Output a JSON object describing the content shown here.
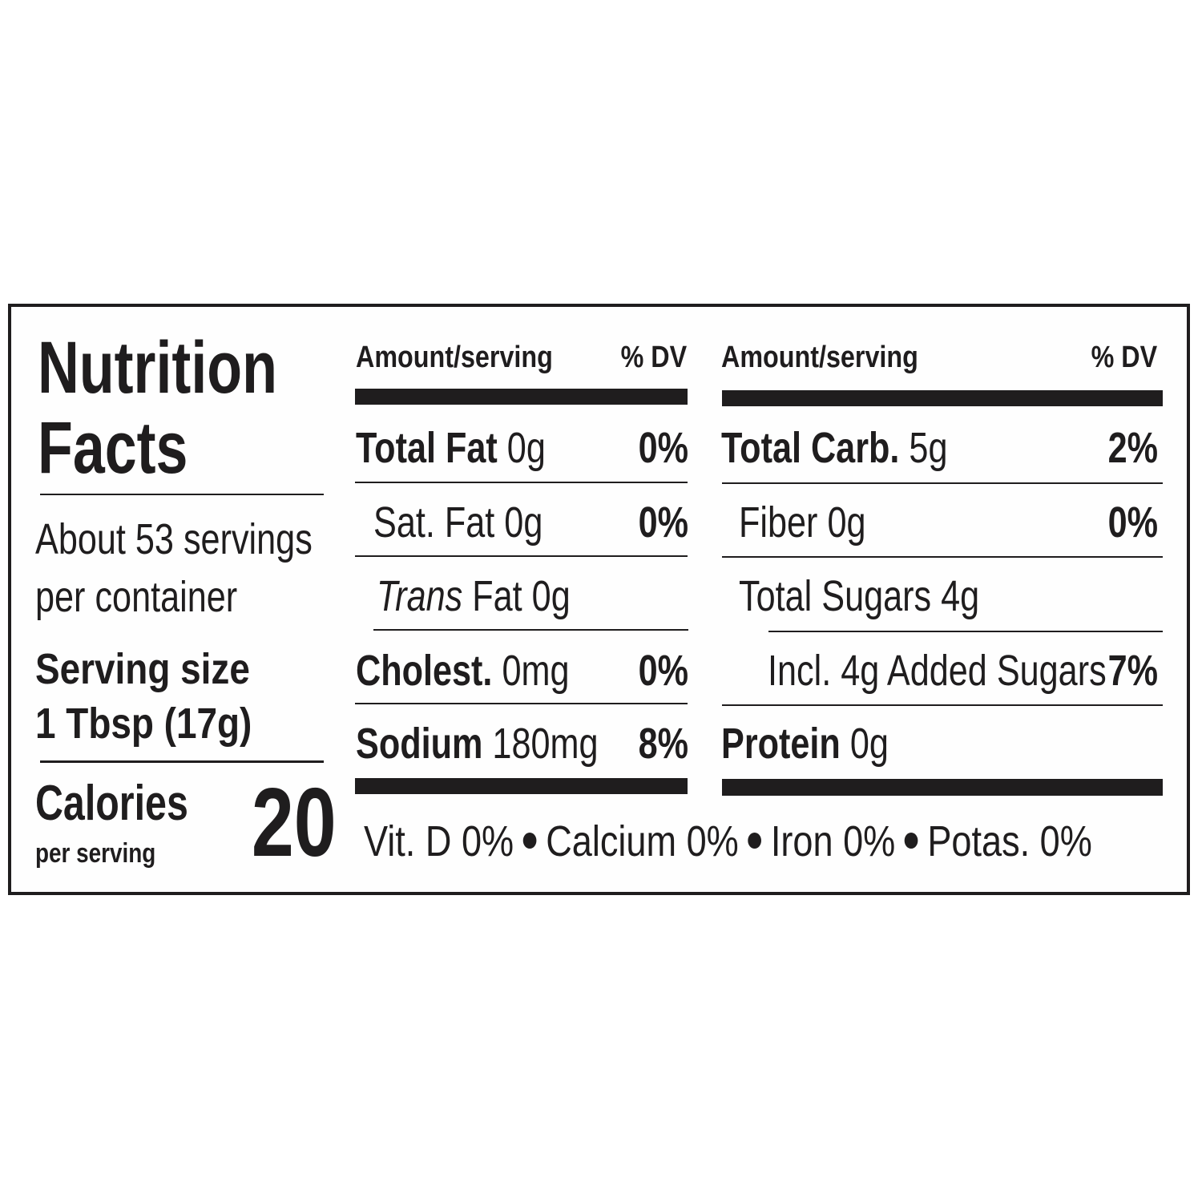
{
  "label": {
    "title_line1": "Nutrition",
    "title_line2": "Facts",
    "servings_line1": "About 53 servings",
    "servings_line2": "per container",
    "serving_size_line1": "Serving size",
    "serving_size_line2": "1 Tbsp (17g)",
    "calories_label": "Calories",
    "calories_sub": "per serving",
    "calories_value": "20"
  },
  "left_column": {
    "amount_header": "Amount/serving",
    "dv_header": "% DV",
    "rows": [
      {
        "name": "Total Fat",
        "amount": "0g",
        "dv": "0%"
      },
      {
        "name": "Sat. Fat",
        "amount": "0g",
        "dv": "0%"
      },
      {
        "name_italic": "Trans",
        "name_rest": "Fat",
        "amount": "0g",
        "dv": ""
      },
      {
        "name": "Cholest.",
        "amount": "0mg",
        "dv": "0%"
      },
      {
        "name": "Sodium",
        "amount": "180mg",
        "dv": "8%"
      }
    ]
  },
  "right_column": {
    "amount_header": "Amount/serving",
    "dv_header": "% DV",
    "rows": [
      {
        "name": "Total Carb.",
        "amount": "5g",
        "dv": "2%"
      },
      {
        "name": "Fiber",
        "amount": "0g",
        "dv": "0%"
      },
      {
        "name": "Total Sugars",
        "amount": "4g",
        "dv": ""
      },
      {
        "name": "Incl. 4g Added Sugars",
        "amount": "",
        "dv": "7%"
      },
      {
        "name": "Protein",
        "amount": "0g",
        "dv": ""
      }
    ]
  },
  "footer": {
    "vitamin_d": "Vit. D 0%",
    "calcium": "Calcium 0%",
    "iron": "Iron 0%",
    "potassium": "Potas. 0%"
  },
  "colors": {
    "ink": "#1f1d1e",
    "background": "#ffffff"
  }
}
